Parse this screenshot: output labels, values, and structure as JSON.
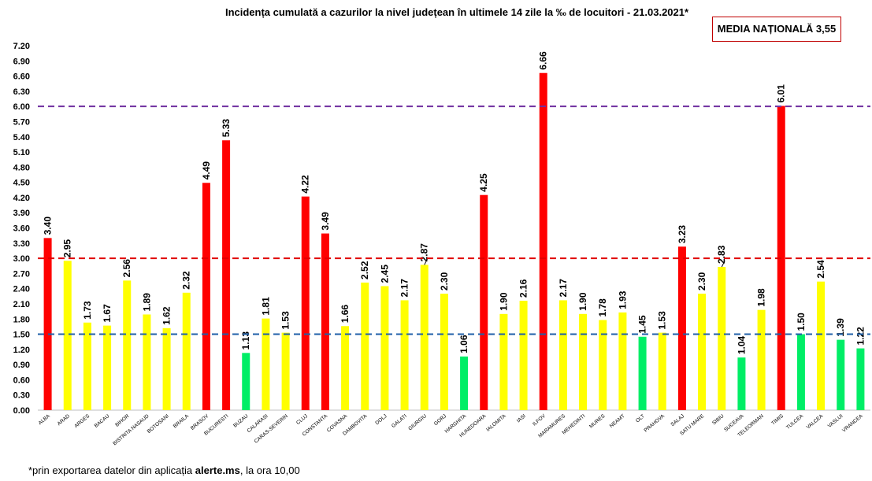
{
  "chart_data": {
    "type": "bar",
    "title": "Incidența cumulată a cazurilor la nivel județean în ultimele 14 zile la ‰ de locuitori - 21.03.2021*",
    "national_average_label": "MEDIA NAȚIONALĂ 3,55",
    "ylim": [
      0,
      7.2
    ],
    "yticks": [
      "0.00",
      "0.30",
      "0.60",
      "0.90",
      "1.20",
      "1.50",
      "1.80",
      "2.10",
      "2.40",
      "2.70",
      "3.00",
      "3.30",
      "3.60",
      "3.90",
      "4.20",
      "4.50",
      "4.80",
      "5.10",
      "5.40",
      "5.70",
      "6.00",
      "6.30",
      "6.60",
      "6.90",
      "7.20"
    ],
    "grid": false,
    "reference_lines": [
      {
        "value": 6.0,
        "color": "#7030a0"
      },
      {
        "value": 3.0,
        "color": "#e00000"
      },
      {
        "value": 1.5,
        "color": "#1f5fa8"
      }
    ],
    "categories": [
      "ALBA",
      "ARAD",
      "ARGES",
      "BACAU",
      "BIHOR",
      "BISTRITA NASAUD",
      "BOTOSANI",
      "BRAILA",
      "BRASOV",
      "BUCURESTI",
      "BUZAU",
      "CALARASI",
      "CARAS-SEVERIN",
      "CLUJ",
      "CONSTANTA",
      "COVASNA",
      "DAMBOVITA",
      "DOLJ",
      "GALATI",
      "GIURGIU",
      "GORJ",
      "HARGHITA",
      "HUNEDOARA",
      "IALOMITA",
      "IASI",
      "ILFOV",
      "MARAMURES",
      "MEHEDINTI",
      "MURES",
      "NEAMT",
      "OLT",
      "PRAHOVA",
      "SALAJ",
      "SATU MARE",
      "SIBIU",
      "SUCEAVA",
      "TELEORMAN",
      "TIMIS",
      "TULCEA",
      "VALCEA",
      "VASLUI",
      "VRANCEA"
    ],
    "values": [
      3.4,
      2.95,
      1.73,
      1.67,
      2.56,
      1.89,
      1.62,
      2.32,
      4.49,
      5.33,
      1.13,
      1.81,
      1.53,
      4.22,
      3.49,
      1.66,
      2.52,
      2.45,
      2.17,
      2.87,
      2.3,
      1.06,
      4.25,
      1.9,
      2.16,
      6.66,
      2.17,
      1.9,
      1.78,
      1.93,
      1.45,
      1.53,
      3.23,
      2.3,
      2.83,
      1.04,
      1.98,
      6.01,
      1.5,
      2.54,
      1.39,
      1.22
    ],
    "value_labels": [
      "3.40",
      "2.95",
      "1.73",
      "1.67",
      "2.56",
      "1.89",
      "1.62",
      "2.32",
      "4.49",
      "5.33",
      "1.13",
      "1.81",
      "1.53",
      "4.22",
      "3.49",
      "1.66",
      "2.52",
      "2.45",
      "2.17",
      "2.87",
      "2.30",
      "1.06",
      "4.25",
      "1.90",
      "2.16",
      "6.66",
      "2.17",
      "1.90",
      "1.78",
      "1.93",
      "1.45",
      "1.53",
      "3.23",
      "2.30",
      "2.83",
      "1.04",
      "1.98",
      "6.01",
      "1.50",
      "2.54",
      "1.39",
      "1.22"
    ],
    "colors": {
      "red": "#ff0000",
      "yellow": "#ffff00",
      "green": "#00ee66"
    }
  },
  "footnote": {
    "prefix": "*prin exportarea datelor din aplicația ",
    "bold": "alerte.ms",
    "suffix": ", la ora 10,00"
  }
}
